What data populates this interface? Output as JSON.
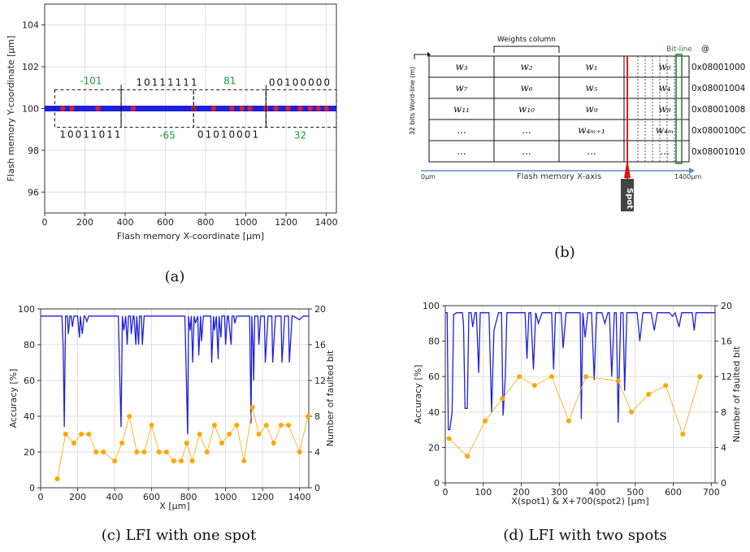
{
  "captions": {
    "a": "(a)",
    "b": "(b)",
    "c": "(c) LFI with one spot",
    "d": "(d) LFI with two spots"
  },
  "colors": {
    "line_blue": "#1f1fe0",
    "marker_orange": "#ffa500",
    "red_point": "#e02020",
    "green_text": "#1a9a3a",
    "bitline_green": "#2e7d32"
  },
  "figure_b": {
    "header": "Weights column",
    "bitline_label": "Bit-line",
    "at_symbol": "@",
    "wordline_label": "32 bits Word-line (m)",
    "axis_label": "Flash memory X-axis",
    "axis_start": "0µm",
    "axis_end": "1400µm",
    "spot_label": "Spot",
    "rows": [
      {
        "cells": [
          "w₃",
          "w₂",
          "w₁",
          "w₀"
        ],
        "address": "0x08001000"
      },
      {
        "cells": [
          "w₇",
          "w₆",
          "w₅",
          "w₄"
        ],
        "address": "0x08001004"
      },
      {
        "cells": [
          "w₁₁",
          "w₁₀",
          "w₉",
          "w₈"
        ],
        "address": "0x08001008"
      },
      {
        "cells": [
          "...",
          "...",
          "w₄ₘ₊₁",
          "w₄ₘ"
        ],
        "address": "0x0800100C"
      },
      {
        "cells": [
          "...",
          "...",
          "...",
          "..."
        ],
        "address": "0x08001010"
      }
    ]
  },
  "chart_data": [
    {
      "id": "a",
      "type": "scatter",
      "xlabel": "Flash memory X-coordinate [µm]",
      "ylabel": "Flash memory Y-coordinate [µm]",
      "xlim": [
        0,
        1450
      ],
      "ylim": [
        95,
        105
      ],
      "xticks": [
        0,
        200,
        400,
        600,
        800,
        1000,
        1200,
        1400
      ],
      "yticks": [
        96,
        98,
        100,
        102,
        104
      ],
      "grid": true,
      "series": [
        {
          "color": "#1f1fe0",
          "x_range": [
            0,
            1450
          ],
          "y": 100
        },
        {
          "color": "#e02020",
          "x": [
            90,
            135,
            265,
            440,
            740,
            840,
            930,
            980,
            1020,
            1100,
            1150,
            1210,
            1270,
            1320,
            1360,
            1400
          ],
          "y": 100
        }
      ],
      "annotations": {
        "bits_top": [
          "10111111",
          "00100000"
        ],
        "bits_bottom": [
          "10011011",
          "01010001"
        ],
        "values_top": [
          "-101",
          "81"
        ],
        "values_bottom": [
          "-65",
          "32"
        ],
        "boxes": [
          [
            50,
            380
          ],
          [
            380,
            740
          ],
          [
            740,
            1100
          ],
          [
            1100,
            1450
          ]
        ]
      }
    },
    {
      "id": "c",
      "type": "line",
      "xlabel": "X [µm]",
      "ylabel": "Accuracy [%]",
      "y2label": "Number of faulted bit",
      "xlim": [
        0,
        1450
      ],
      "ylim": [
        0,
        100
      ],
      "y2lim": [
        0,
        20
      ],
      "xticks": [
        0,
        200,
        400,
        600,
        800,
        1000,
        1200,
        1400
      ],
      "yticks": [
        0,
        20,
        40,
        60,
        80,
        100
      ],
      "y2ticks": [
        0,
        4,
        8,
        12,
        16,
        20
      ],
      "grid": true,
      "series": [
        {
          "axis": "left",
          "color": "#1f1fe0",
          "style": "line",
          "x": [
            0,
            115,
            122,
            128,
            135,
            145,
            150,
            158,
            165,
            172,
            180,
            190,
            200,
            210,
            215,
            225,
            235,
            240,
            250,
            260,
            265,
            275,
            285,
            295,
            420,
            428,
            435,
            442,
            450,
            460,
            468,
            475,
            485,
            490,
            500,
            505,
            515,
            520,
            530,
            535,
            545,
            550,
            560,
            565,
            575,
            780,
            788,
            795,
            800,
            808,
            815,
            822,
            830,
            838,
            850,
            855,
            865,
            870,
            880,
            885,
            895,
            900,
            920,
            925,
            935,
            940,
            950,
            960,
            965,
            975,
            980,
            995,
            1000,
            1010,
            1015,
            1030,
            1035,
            1045,
            1050,
            1060,
            1070,
            1080,
            1130,
            1138,
            1142,
            1148,
            1152,
            1158,
            1165,
            1175,
            1180,
            1190,
            1195,
            1210,
            1215,
            1230,
            1240,
            1250,
            1255,
            1270,
            1275,
            1300,
            1305,
            1320,
            1325,
            1340,
            1345,
            1360,
            1365,
            1400,
            1420,
            1450
          ],
          "y": [
            96,
            96,
            78,
            34,
            96,
            96,
            86,
            96,
            96,
            90,
            96,
            96,
            96,
            84,
            96,
            86,
            96,
            96,
            93,
            96,
            96,
            96,
            96,
            96,
            96,
            62,
            34,
            96,
            88,
            96,
            80,
            96,
            96,
            86,
            96,
            96,
            80,
            96,
            80,
            96,
            96,
            80,
            96,
            96,
            96,
            96,
            62,
            30,
            96,
            88,
            96,
            70,
            96,
            92,
            96,
            74,
            96,
            82,
            96,
            96,
            96,
            96,
            96,
            70,
            96,
            88,
            96,
            72,
            96,
            84,
            96,
            96,
            80,
            96,
            96,
            80,
            96,
            96,
            92,
            96,
            96,
            96,
            96,
            36,
            96,
            80,
            60,
            96,
            96,
            96,
            80,
            96,
            96,
            96,
            70,
            96,
            96,
            96,
            70,
            96,
            96,
            96,
            70,
            96,
            96,
            96,
            70,
            96,
            96,
            94,
            96,
            96
          ]
        },
        {
          "axis": "right",
          "color": "#ffa500",
          "style": "line-marker",
          "x": [
            90,
            135,
            180,
            220,
            260,
            300,
            340,
            400,
            440,
            480,
            520,
            560,
            600,
            640,
            680,
            720,
            760,
            790,
            820,
            860,
            900,
            940,
            980,
            1020,
            1060,
            1100,
            1145,
            1180,
            1220,
            1260,
            1300,
            1340,
            1400,
            1445
          ],
          "y": [
            1,
            6,
            5,
            6,
            6,
            4,
            4,
            3,
            5,
            8,
            4,
            4,
            7,
            4,
            4,
            3,
            3,
            5,
            3,
            6,
            4,
            7,
            5,
            6,
            7,
            3,
            9,
            6,
            7,
            5,
            7,
            7,
            4,
            8
          ]
        }
      ]
    },
    {
      "id": "d",
      "type": "line",
      "xlabel": "X(spot1)  &  X+700(spot2)  [µm]",
      "ylabel": "Accuracy [%]",
      "y2label": "Number of faulted bit",
      "xlim": [
        0,
        710
      ],
      "ylim": [
        0,
        100
      ],
      "y2lim": [
        0,
        20
      ],
      "xticks": [
        0,
        100,
        200,
        300,
        400,
        500,
        600,
        700
      ],
      "yticks": [
        0,
        20,
        40,
        60,
        80,
        100
      ],
      "y2ticks": [
        0,
        4,
        8,
        12,
        16,
        20
      ],
      "grid": true,
      "series": [
        {
          "axis": "left",
          "color": "#1f1fe0",
          "style": "line",
          "x": [
            0,
            5,
            8,
            12,
            18,
            22,
            30,
            35,
            40,
            45,
            48,
            52,
            58,
            62,
            68,
            72,
            78,
            82,
            88,
            92,
            98,
            102,
            110,
            115,
            122,
            128,
            140,
            148,
            152,
            158,
            162,
            168,
            175,
            185,
            195,
            205,
            210,
            215,
            220,
            225,
            232,
            238,
            245,
            255,
            262,
            272,
            280,
            285,
            290,
            298,
            305,
            310,
            318,
            325,
            330,
            340,
            348,
            355,
            358,
            362,
            368,
            375,
            380,
            385,
            392,
            398,
            405,
            412,
            420,
            428,
            432,
            438,
            445,
            450,
            455,
            458,
            462,
            468,
            472,
            478,
            485,
            490,
            498,
            505,
            512,
            520,
            528,
            535,
            542,
            550,
            558,
            565,
            572,
            580,
            585,
            590,
            598,
            605,
            615,
            622,
            630,
            640,
            650,
            655,
            660,
            665,
            670,
            675,
            690,
            700,
            710
          ],
          "y": [
            96,
            96,
            30,
            30,
            40,
            95,
            96,
            96,
            96,
            96,
            90,
            42,
            42,
            96,
            96,
            88,
            96,
            96,
            62,
            96,
            96,
            96,
            96,
            96,
            40,
            86,
            96,
            96,
            38,
            60,
            96,
            96,
            96,
            96,
            96,
            96,
            96,
            70,
            96,
            96,
            64,
            96,
            90,
            96,
            96,
            96,
            96,
            64,
            96,
            96,
            96,
            76,
            96,
            96,
            96,
            96,
            96,
            96,
            36,
            96,
            82,
            96,
            96,
            96,
            58,
            96,
            96,
            96,
            90,
            96,
            96,
            60,
            96,
            96,
            34,
            64,
            96,
            96,
            52,
            96,
            96,
            96,
            96,
            96,
            80,
            96,
            96,
            96,
            96,
            86,
            96,
            96,
            96,
            96,
            96,
            96,
            94,
            96,
            88,
            96,
            96,
            96,
            96,
            86,
            96,
            96,
            96,
            96,
            96,
            96,
            96
          ]
        },
        {
          "axis": "right",
          "color": "#ffa500",
          "style": "line-marker",
          "x": [
            10,
            58,
            105,
            150,
            195,
            235,
            280,
            325,
            370,
            455,
            490,
            535,
            580,
            625,
            670
          ],
          "y": [
            5,
            3,
            7,
            9.5,
            12,
            11,
            12,
            7,
            12,
            11.5,
            8,
            10,
            11,
            5.5,
            12
          ]
        }
      ]
    }
  ]
}
